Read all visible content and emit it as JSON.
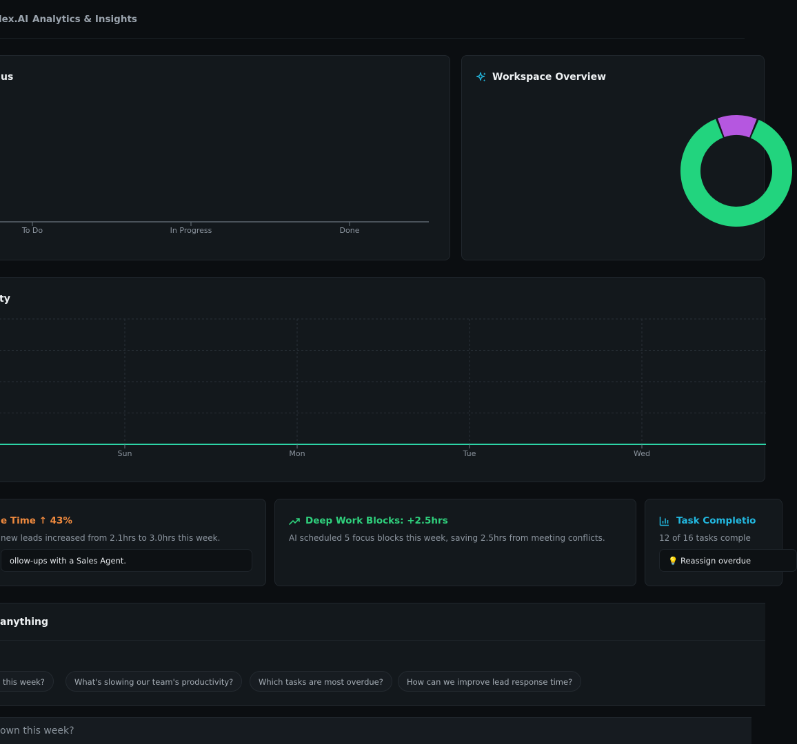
{
  "header": {
    "brand": "lex.AI",
    "breadcrumb": "Analytics & Insights"
  },
  "status_card": {
    "title": "us"
  },
  "overview_card": {
    "title": "Workspace Overview"
  },
  "velocity_card": {
    "title": "ty"
  },
  "chart_data": [
    {
      "type": "bar",
      "title": "us",
      "categories": [
        "To Do",
        "In Progress",
        "Done"
      ],
      "values": [
        0,
        0,
        0
      ]
    },
    {
      "type": "pie",
      "title": "Workspace Overview",
      "series": [
        {
          "name": "",
          "value": 88,
          "color": "#22d47e"
        },
        {
          "name": "",
          "value": 12,
          "color": "#b557e0"
        }
      ]
    },
    {
      "type": "line",
      "title": "ty",
      "x": [
        "Sun",
        "Mon",
        "Tue",
        "Wed"
      ],
      "series": [
        {
          "values": [
            0,
            0,
            0,
            0
          ],
          "color": "#2dd4a7"
        }
      ]
    }
  ],
  "insights": [
    {
      "title": "e Time ↑ 43%",
      "body": " new leads increased from 2.1hrs to 3.0hrs this week.",
      "action": "ollow-ups with a Sales Agent.",
      "color": "#f08a3e"
    },
    {
      "title": "Deep Work Blocks: +2.5hrs",
      "body": "AI scheduled 5 focus blocks this week, saving 2.5hrs from meeting conflicts.",
      "color": "#2fcf7c",
      "icon": "trending-up-icon"
    },
    {
      "title": "Task Completio",
      "body": "12 of 16 tasks comple",
      "action": "💡 Reassign overdue",
      "color": "#22b8e0",
      "icon": "bar-chart-icon"
    }
  ],
  "ask": {
    "title": "anything",
    "suggestions": [
      "n this week?",
      "What's slowing our team's productivity?",
      "Which tasks are most overdue?",
      "How can we improve lead response time?"
    ],
    "input_placeholder": "own this week?"
  }
}
